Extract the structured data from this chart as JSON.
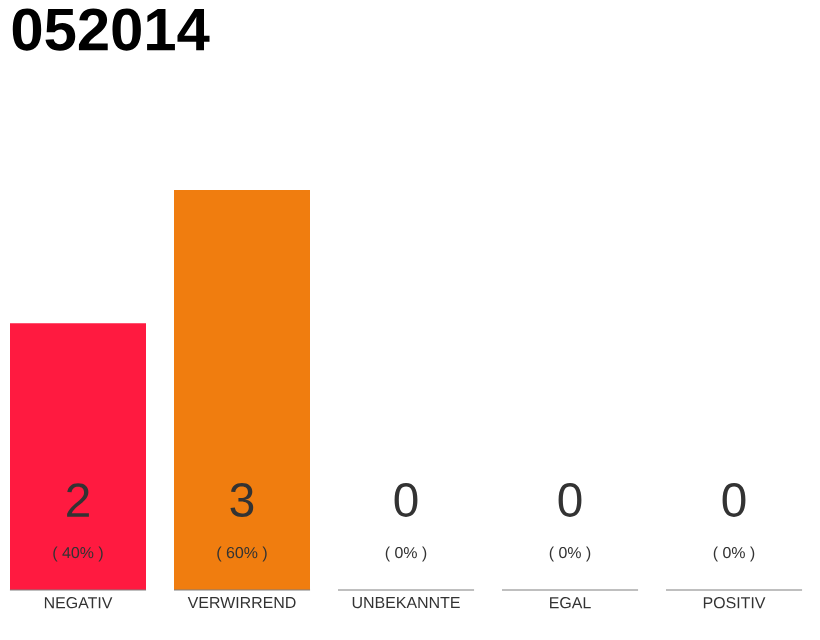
{
  "chart_data": {
    "type": "bar",
    "title": "052014",
    "categories": [
      "NEGATIV",
      "VERWIRREND",
      "UNBEKANNTE",
      "EGAL",
      "POSITIV"
    ],
    "values": [
      2,
      3,
      0,
      0,
      0
    ],
    "colors": [
      "#ff1a40",
      "#f07d0f",
      "#eeeeee",
      "#eeeeee",
      "#eeeeee"
    ],
    "data_labels": true,
    "annotations": [
      "( 40% )",
      "( 60% )",
      "( 0% )",
      "( 0% )",
      "( 0% )"
    ]
  }
}
